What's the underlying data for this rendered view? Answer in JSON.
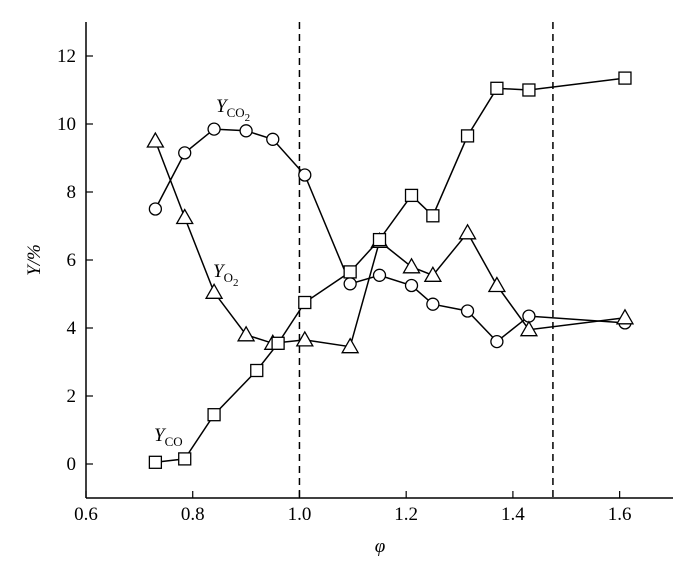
{
  "chart_data": {
    "type": "line",
    "xlabel": "φ",
    "ylabel": "Y/%",
    "xlim": [
      0.6,
      1.7
    ],
    "ylim": [
      -1,
      13
    ],
    "xticks": [
      {
        "value": 0.6,
        "label": "0.6"
      },
      {
        "value": 0.8,
        "label": "0.8"
      },
      {
        "value": 1.0,
        "label": "1.0"
      },
      {
        "value": 1.2,
        "label": "1.2"
      },
      {
        "value": 1.4,
        "label": "1.4"
      },
      {
        "value": 1.6,
        "label": "1.6"
      }
    ],
    "yticks": [
      0,
      2,
      4,
      6,
      8,
      10,
      12
    ],
    "vlines": [
      1.0,
      1.475
    ],
    "series": [
      {
        "label": {
          "main": "Y",
          "sub": "CO",
          "sub2": "2"
        },
        "marker": "circle",
        "color": "#000000",
        "x": [
          0.73,
          0.785,
          0.84,
          0.9,
          0.95,
          1.01,
          1.095,
          1.15,
          1.21,
          1.25,
          1.315,
          1.37,
          1.43,
          1.61
        ],
        "values": [
          7.5,
          9.15,
          9.85,
          9.8,
          9.55,
          8.5,
          5.3,
          5.55,
          5.25,
          4.7,
          4.5,
          3.6,
          4.35,
          4.15
        ]
      },
      {
        "label": {
          "main": "Y",
          "sub": "O",
          "sub2": "2"
        },
        "marker": "triangle",
        "color": "#000000",
        "x": [
          0.73,
          0.785,
          0.84,
          0.9,
          0.95,
          1.01,
          1.095,
          1.15,
          1.21,
          1.25,
          1.315,
          1.37,
          1.43,
          1.61
        ],
        "values": [
          9.5,
          7.25,
          5.05,
          3.8,
          3.55,
          3.65,
          3.45,
          6.55,
          5.8,
          5.55,
          6.8,
          5.25,
          3.95,
          4.3
        ]
      },
      {
        "label": {
          "main": "Y",
          "sub": "CO"
        },
        "marker": "square",
        "color": "#000000",
        "x": [
          0.73,
          0.785,
          0.84,
          0.92,
          0.96,
          1.01,
          1.095,
          1.15,
          1.21,
          1.25,
          1.315,
          1.37,
          1.43,
          1.61
        ],
        "values": [
          0.05,
          0.15,
          1.45,
          2.75,
          3.55,
          4.75,
          5.65,
          6.6,
          7.9,
          7.3,
          9.65,
          11.05,
          11.0,
          11.35
        ]
      }
    ]
  }
}
